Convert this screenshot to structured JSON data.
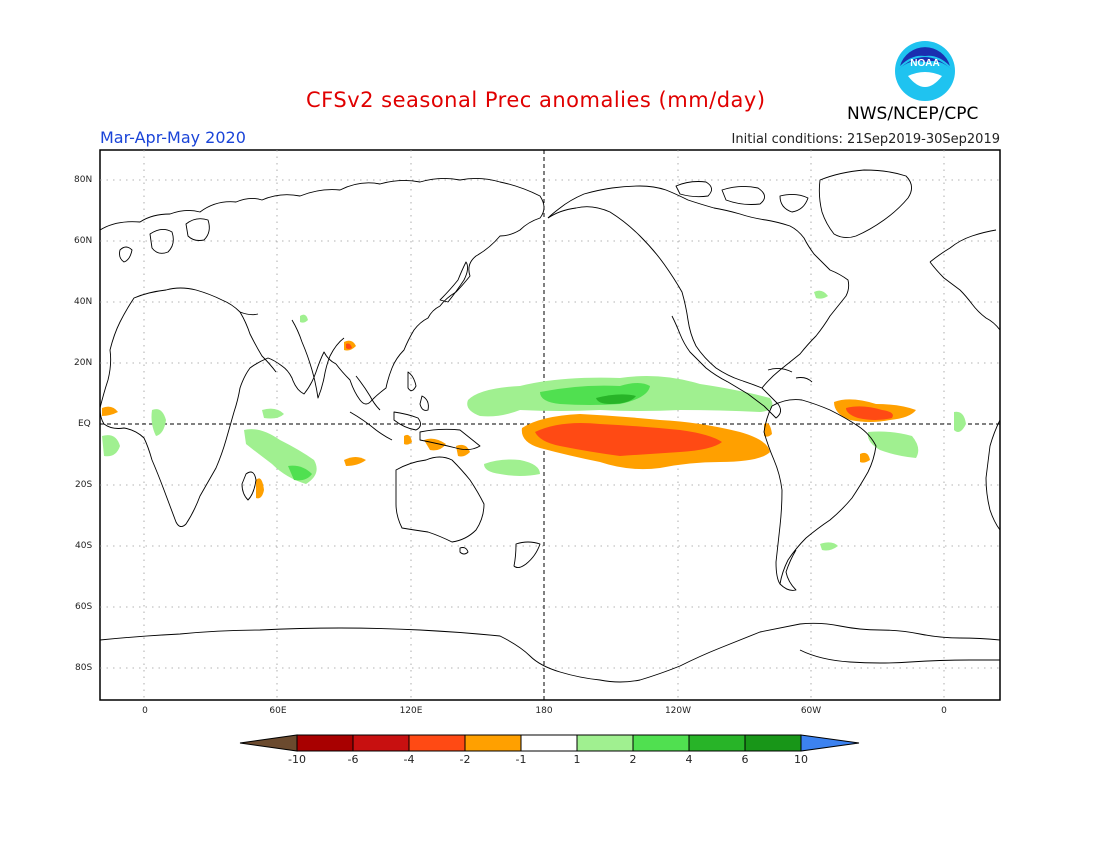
{
  "title": "CFSv2 seasonal Prec anomalies (mm/day)",
  "season": "Mar-Apr-May 2020",
  "initial_conditions": "Initial conditions: 21Sep2019-30Sep2019",
  "agency": "NWS/NCEP/CPC",
  "logo_text": "NOAA",
  "lat_labels": [
    "80N",
    "60N",
    "40N",
    "20N",
    "EQ",
    "20S",
    "40S",
    "60S",
    "80S"
  ],
  "lon_labels": [
    "0",
    "60E",
    "120E",
    "180",
    "120W",
    "60W",
    "0"
  ],
  "colorbar": {
    "labels": [
      "-10",
      "-6",
      "-4",
      "-2",
      "-1",
      "1",
      "2",
      "4",
      "6",
      "10"
    ],
    "colors": [
      "#6b4a2e",
      "#a80000",
      "#c81010",
      "#ff4a14",
      "#ffa000",
      "#ffffff",
      "#a0f090",
      "#50e050",
      "#28b428",
      "#189618",
      "#3c82f0"
    ]
  },
  "colors": {
    "land_outline": "#000000",
    "grid": "#909090",
    "title": "#e00000",
    "season": "#1a44d8"
  }
}
